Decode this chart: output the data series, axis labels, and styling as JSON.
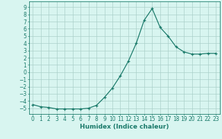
{
  "title": "",
  "xlabel": "Humidex (Indice chaleur)",
  "ylabel": "",
  "x_values": [
    0,
    1,
    2,
    3,
    4,
    5,
    6,
    7,
    8,
    9,
    10,
    11,
    12,
    13,
    14,
    15,
    16,
    17,
    18,
    19,
    20,
    21,
    22,
    23
  ],
  "y_values": [
    -4.5,
    -4.8,
    -4.9,
    -5.1,
    -5.1,
    -5.1,
    -5.1,
    -5.0,
    -4.6,
    -3.5,
    -2.2,
    -0.5,
    1.5,
    4.0,
    7.2,
    8.8,
    6.2,
    5.0,
    3.5,
    2.8,
    2.5,
    2.5,
    2.6,
    2.6
  ],
  "line_color": "#1a7a6a",
  "marker": "+",
  "marker_size": 3,
  "line_width": 0.9,
  "bg_color": "#d8f5f0",
  "grid_color": "#aacfc8",
  "tick_color": "#1a7a6a",
  "xlim": [
    -0.5,
    23.5
  ],
  "ylim": [
    -5.8,
    9.8
  ],
  "yticks": [
    -5,
    -4,
    -3,
    -2,
    -1,
    0,
    1,
    2,
    3,
    4,
    5,
    6,
    7,
    8,
    9
  ],
  "xtick_labels": [
    "0",
    "1",
    "2",
    "3",
    "4",
    "5",
    "6",
    "7",
    "8",
    "9",
    "10",
    "11",
    "12",
    "13",
    "14",
    "15",
    "16",
    "17",
    "18",
    "19",
    "20",
    "21",
    "22",
    "23"
  ],
  "font_color": "#1a7a6a",
  "font_size": 5.5,
  "xlabel_fontsize": 6.5,
  "marker_edge_width": 0.9
}
